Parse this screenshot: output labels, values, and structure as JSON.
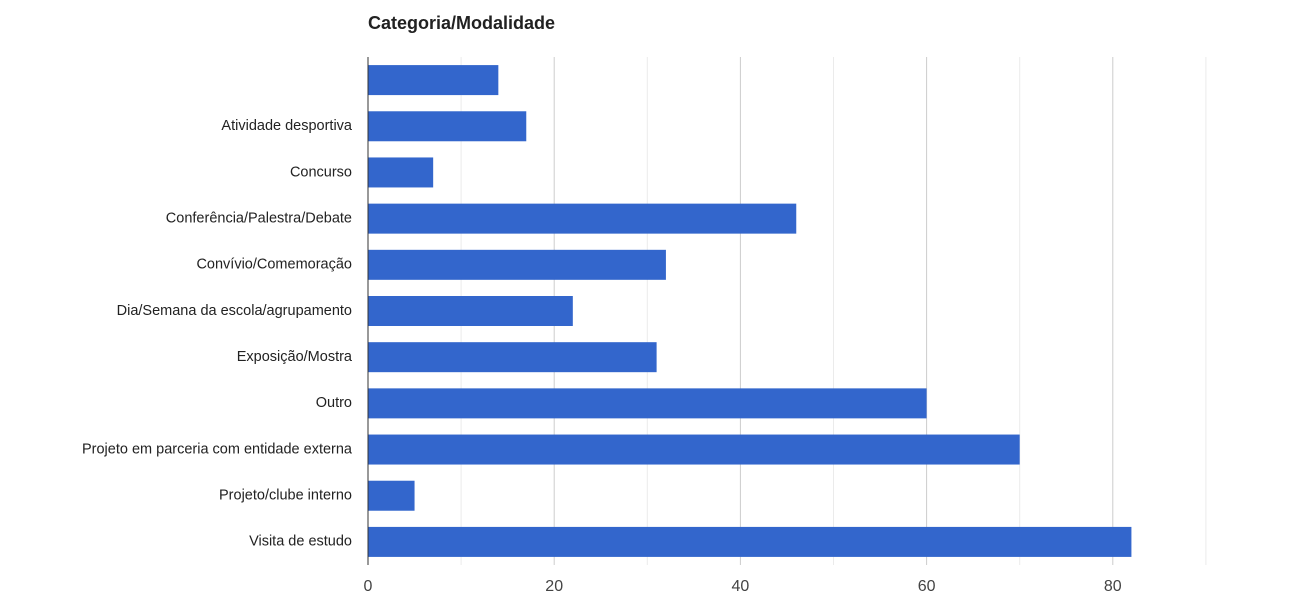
{
  "chart_data": {
    "type": "bar",
    "orientation": "horizontal",
    "title": "Categoria/Modalidade",
    "categories": [
      null,
      "Atividade desportiva",
      "Concurso",
      "Conferência/Palestra/Debate",
      "Convívio/Comemoração",
      "Dia/Semana da escola/agrupamento",
      "Exposição/Mostra",
      "Outro",
      "Projeto em parceria com entidade externa",
      "Projeto/clube interno",
      "Visita de estudo"
    ],
    "values": [
      14,
      17,
      7,
      46,
      32,
      22,
      31,
      60,
      70,
      5,
      82
    ],
    "color": "#3366cc",
    "xlim": [
      0,
      90
    ],
    "xticks": [
      0,
      20,
      40,
      60,
      80
    ],
    "xminorticks": [
      10,
      30,
      50,
      70,
      90
    ],
    "grid": true
  }
}
